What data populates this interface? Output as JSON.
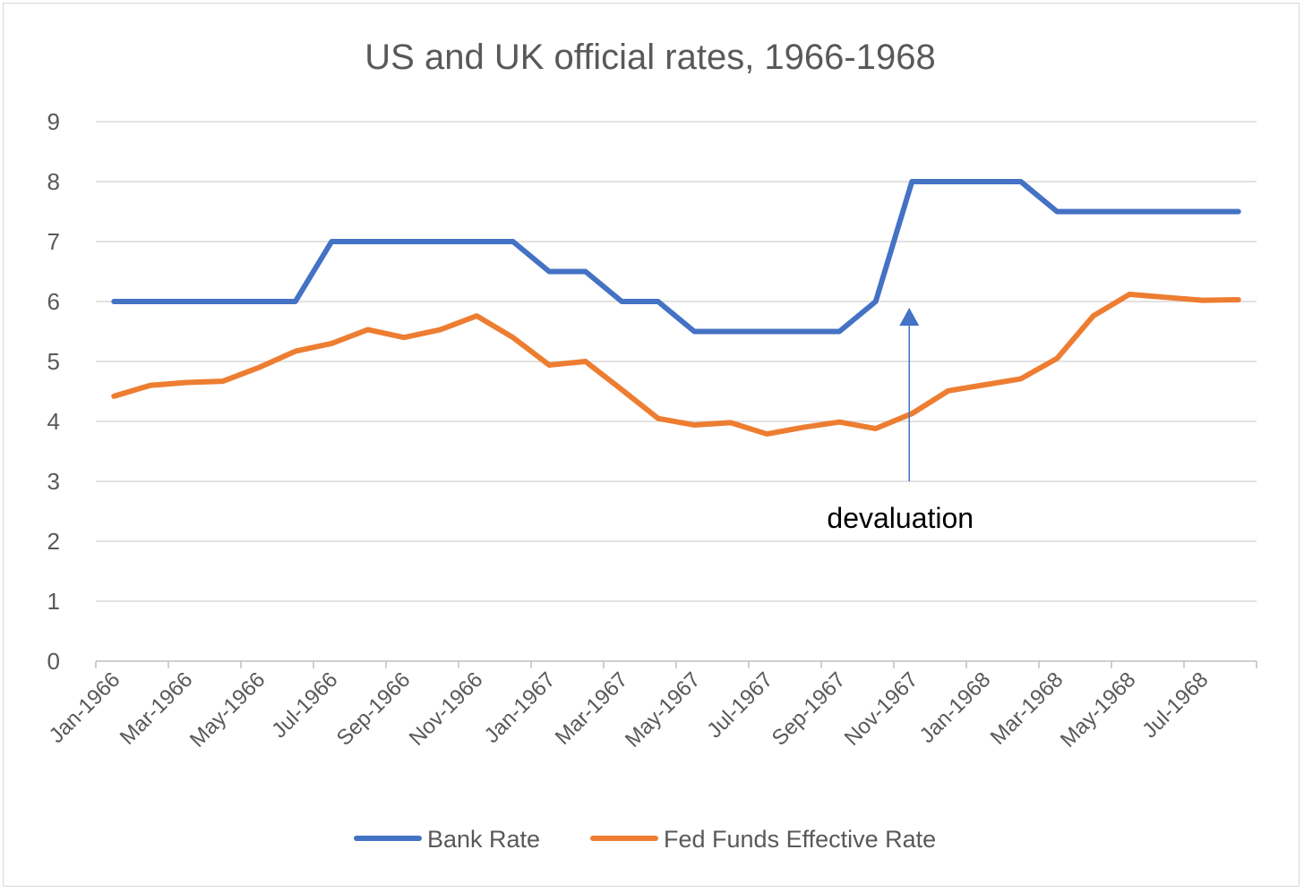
{
  "chart_data": {
    "type": "line",
    "title": "US and UK official rates, 1966-1968",
    "xlabel": "",
    "ylabel": "",
    "ylim": [
      0,
      9
    ],
    "yticks": [
      0,
      1,
      2,
      3,
      4,
      5,
      6,
      7,
      8,
      9
    ],
    "grid": true,
    "legend_position": "bottom",
    "categories": [
      "Jan-1966",
      "Feb-1966",
      "Mar-1966",
      "Apr-1966",
      "May-1966",
      "Jun-1966",
      "Jul-1966",
      "Aug-1966",
      "Sep-1966",
      "Oct-1966",
      "Nov-1966",
      "Dec-1966",
      "Jan-1967",
      "Feb-1967",
      "Mar-1967",
      "Apr-1967",
      "May-1967",
      "Jun-1967",
      "Jul-1967",
      "Aug-1967",
      "Sep-1967",
      "Oct-1967",
      "Nov-1967",
      "Dec-1967",
      "Jan-1968",
      "Feb-1968",
      "Mar-1968",
      "Apr-1968",
      "May-1968",
      "Jun-1968",
      "Jul-1968",
      "Aug-1968"
    ],
    "x_tick_labels": [
      "Jan-1966",
      "Mar-1966",
      "May-1966",
      "Jul-1966",
      "Sep-1966",
      "Nov-1966",
      "Jan-1967",
      "Mar-1967",
      "May-1967",
      "Jul-1967",
      "Sep-1967",
      "Nov-1967",
      "Jan-1968",
      "Mar-1968",
      "May-1968",
      "Jul-1968"
    ],
    "series": [
      {
        "name": "Bank Rate",
        "color": "#4472C4",
        "values": [
          6,
          6,
          6,
          6,
          6,
          6,
          7,
          7,
          7,
          7,
          7,
          7,
          6.5,
          6.5,
          6,
          6,
          5.5,
          5.5,
          5.5,
          5.5,
          5.5,
          6,
          8,
          8,
          8,
          8,
          7.5,
          7.5,
          7.5,
          7.5,
          7.5,
          7.5
        ]
      },
      {
        "name": "Fed Funds Effective Rate",
        "color": "#ED7D31",
        "values": [
          4.42,
          4.6,
          4.65,
          4.67,
          4.9,
          5.17,
          5.3,
          5.53,
          5.4,
          5.53,
          5.76,
          5.4,
          4.94,
          5.0,
          4.53,
          4.05,
          3.94,
          3.98,
          3.79,
          3.9,
          3.99,
          3.88,
          4.13,
          4.51,
          4.61,
          4.71,
          5.05,
          5.76,
          6.12,
          6.07,
          6.02,
          6.03
        ]
      }
    ],
    "annotations": [
      {
        "text": "devaluation",
        "category": "Nov-1967",
        "arrow_to_value": 6,
        "arrow_from_value": 3
      }
    ]
  },
  "colors": {
    "gridline": "#d9d9d9",
    "axis": "#bfbfbf",
    "text": "#595959",
    "annotation_arrow": "#4472C4"
  }
}
